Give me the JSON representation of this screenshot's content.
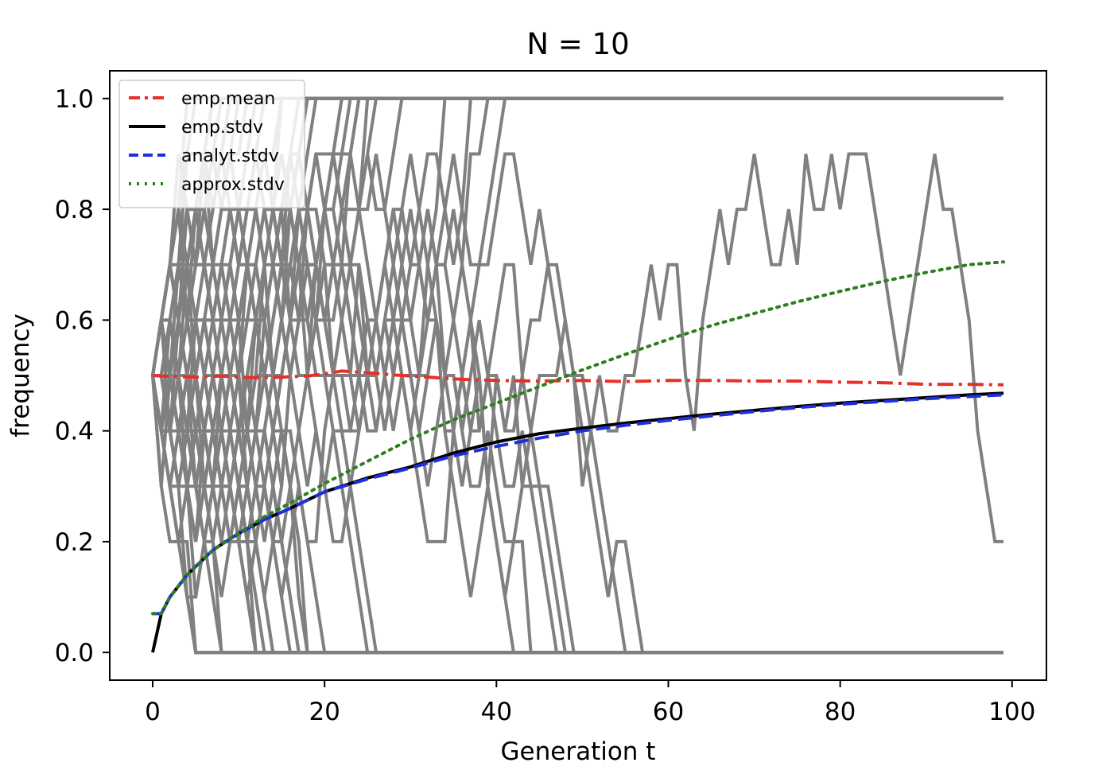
{
  "chart_data": {
    "type": "line",
    "title": "N = 10",
    "xlabel": "Generation t",
    "ylabel": "frequency",
    "xlim": [
      -5,
      104
    ],
    "ylim": [
      -0.05,
      1.05
    ],
    "xticks": [
      0,
      20,
      40,
      60,
      80,
      100
    ],
    "yticks": [
      0.0,
      0.2,
      0.4,
      0.6,
      0.8,
      1.0
    ],
    "xtick_labels": [
      "0",
      "20",
      "40",
      "60",
      "80",
      "100"
    ],
    "ytick_labels": [
      "0.0",
      "0.2",
      "0.4",
      "0.6",
      "0.8",
      "1.0"
    ],
    "grid": false,
    "legend_position": "upper-left",
    "background_trajectories": {
      "color": "#808080",
      "description_levels": [
        0.0,
        0.1,
        0.2,
        0.3,
        0.4,
        0.5,
        0.6,
        0.7,
        0.8,
        0.9,
        1.0
      ],
      "start_value": 0.5,
      "generations": 100
    },
    "series": [
      {
        "name": "emp.mean",
        "color": "#e8302a",
        "style": "dashdot",
        "x": [
          0,
          2,
          5,
          8,
          10,
          12,
          15,
          18,
          20,
          22,
          25,
          28,
          30,
          33,
          36,
          40,
          45,
          50,
          55,
          60,
          65,
          70,
          75,
          80,
          85,
          90,
          95,
          99
        ],
        "values": [
          0.5,
          0.498,
          0.497,
          0.499,
          0.497,
          0.496,
          0.497,
          0.499,
          0.503,
          0.508,
          0.505,
          0.501,
          0.499,
          0.496,
          0.493,
          0.491,
          0.49,
          0.491,
          0.489,
          0.491,
          0.491,
          0.49,
          0.49,
          0.488,
          0.487,
          0.484,
          0.484,
          0.483
        ]
      },
      {
        "name": "emp.stdv",
        "color": "#000000",
        "style": "solid",
        "x": [
          0,
          1,
          2,
          3,
          4,
          5,
          7,
          10,
          13,
          16,
          20,
          25,
          30,
          35,
          40,
          45,
          50,
          55,
          60,
          65,
          70,
          75,
          80,
          85,
          90,
          95,
          99
        ],
        "values": [
          0.0,
          0.07,
          0.1,
          0.12,
          0.14,
          0.155,
          0.185,
          0.215,
          0.24,
          0.26,
          0.29,
          0.315,
          0.335,
          0.36,
          0.38,
          0.395,
          0.405,
          0.414,
          0.422,
          0.43,
          0.437,
          0.444,
          0.45,
          0.455,
          0.46,
          0.465,
          0.468
        ]
      },
      {
        "name": "analyt.stdv",
        "color": "#1f2fe0",
        "style": "dashed",
        "x": [
          0,
          1,
          2,
          3,
          4,
          5,
          7,
          10,
          13,
          16,
          20,
          25,
          30,
          35,
          40,
          45,
          50,
          55,
          60,
          65,
          70,
          75,
          80,
          85,
          90,
          95,
          99
        ],
        "values": [
          0.07,
          0.07,
          0.1,
          0.12,
          0.14,
          0.155,
          0.185,
          0.215,
          0.24,
          0.26,
          0.29,
          0.313,
          0.333,
          0.355,
          0.372,
          0.387,
          0.4,
          0.41,
          0.419,
          0.427,
          0.435,
          0.442,
          0.448,
          0.453,
          0.458,
          0.462,
          0.465
        ]
      },
      {
        "name": "approx.stdv",
        "color": "#2e7d1e",
        "style": "dotted",
        "x": [
          0,
          1,
          2,
          3,
          4,
          5,
          7,
          10,
          13,
          16,
          20,
          25,
          30,
          35,
          40,
          45,
          50,
          55,
          60,
          65,
          70,
          75,
          80,
          85,
          90,
          95,
          99
        ],
        "values": [
          0.07,
          0.07,
          0.1,
          0.12,
          0.14,
          0.155,
          0.185,
          0.215,
          0.245,
          0.27,
          0.305,
          0.345,
          0.385,
          0.42,
          0.45,
          0.48,
          0.51,
          0.538,
          0.565,
          0.59,
          0.612,
          0.633,
          0.652,
          0.67,
          0.686,
          0.7,
          0.705
        ]
      }
    ]
  }
}
